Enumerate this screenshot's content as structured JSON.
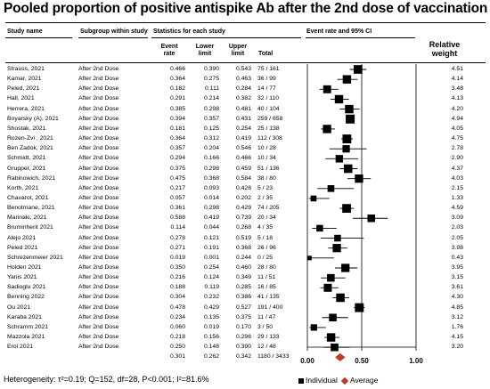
{
  "title": "Pooled proportion of positive antispike Ab after the 2nd dose of vaccination",
  "headers": {
    "study_name": "Study name",
    "subgroup": "Subgroup within study",
    "statistics": "Statistics for each study",
    "event_rate": "Event\nrate",
    "lower": "Lower\nlimit",
    "upper": "Upper\nlimit",
    "total": "Total",
    "ci": "Event rate and 95% CI",
    "weight": "Relative\nweight"
  },
  "chart_data": {
    "type": "forest",
    "title": "Pooled proportion of positive antispike Ab after the 2nd dose of vaccination",
    "xlim": [
      0.0,
      1.0
    ],
    "xticks": [
      "0.00",
      "0.50",
      "1.00"
    ],
    "xtick_values": [
      0.0,
      0.5,
      1.0
    ],
    "studies": [
      {
        "name": "Strauss, 2021",
        "subgroup": "After 2nd Dose",
        "rate": 0.466,
        "lower": 0.39,
        "upper": 0.543,
        "total": "75 / 161",
        "weight": "4.51"
      },
      {
        "name": "Kamar, 2021",
        "subgroup": "After 2nd Dose",
        "rate": 0.364,
        "lower": 0.275,
        "upper": 0.463,
        "total": "36 / 99",
        "weight": "4.14"
      },
      {
        "name": "Peled, 2021",
        "subgroup": "After 2nd Dose",
        "rate": 0.182,
        "lower": 0.111,
        "upper": 0.284,
        "total": "14 / 77",
        "weight": "3.48"
      },
      {
        "name": "Hall, 2021",
        "subgroup": "After 2nd Dose",
        "rate": 0.291,
        "lower": 0.214,
        "upper": 0.382,
        "total": "32 / 110",
        "weight": "4.13"
      },
      {
        "name": "Herrera, 2021",
        "subgroup": "After 2nd Dose",
        "rate": 0.385,
        "lower": 0.298,
        "upper": 0.481,
        "total": "40 / 104",
        "weight": "4.20"
      },
      {
        "name": "Boyarsky (A), 2021",
        "subgroup": "After 2nd Dose",
        "rate": 0.394,
        "lower": 0.357,
        "upper": 0.431,
        "total": "259 / 658",
        "weight": "4.94"
      },
      {
        "name": "Shostak, 2021",
        "subgroup": "After 2nd Dose",
        "rate": 0.181,
        "lower": 0.125,
        "upper": 0.254,
        "total": "25 / 138",
        "weight": "4.05"
      },
      {
        "name": "Rozen-Zvi , 2021",
        "subgroup": "After 2nd Dose",
        "rate": 0.364,
        "lower": 0.312,
        "upper": 0.419,
        "total": "112 / 308",
        "weight": "4.75"
      },
      {
        "name": "Ben Zadok, 2021",
        "subgroup": "After 2nd Dose",
        "rate": 0.357,
        "lower": 0.204,
        "upper": 0.546,
        "total": "10 / 28",
        "weight": "2.78"
      },
      {
        "name": "Schmidt, 2021",
        "subgroup": "After 2nd Dose",
        "rate": 0.294,
        "lower": 0.166,
        "upper": 0.466,
        "total": "10 / 34",
        "weight": "2.90"
      },
      {
        "name": "Grupper, 2021",
        "subgroup": "After 2nd Dose",
        "rate": 0.375,
        "lower": 0.298,
        "upper": 0.459,
        "total": "51 / 136",
        "weight": "4.37"
      },
      {
        "name": "Rabinowich, 2021",
        "subgroup": "After 2nd Dose",
        "rate": 0.475,
        "lower": 0.368,
        "upper": 0.584,
        "total": "38 / 80",
        "weight": "4.03"
      },
      {
        "name": "Korth, 2021",
        "subgroup": "After 2nd Dose",
        "rate": 0.217,
        "lower": 0.093,
        "upper": 0.428,
        "total": "5 / 23",
        "weight": "2.15"
      },
      {
        "name": "Chavarot, 2021",
        "subgroup": "After 2nd Dose",
        "rate": 0.057,
        "lower": 0.014,
        "upper": 0.202,
        "total": "2 / 35",
        "weight": "1.33"
      },
      {
        "name": "Benotmane, 2021",
        "subgroup": "After 2nd Dose",
        "rate": 0.361,
        "lower": 0.298,
        "upper": 0.429,
        "total": "74 / 205",
        "weight": "4.59"
      },
      {
        "name": "Marinaki, 2021",
        "subgroup": "After 2nd Dose",
        "rate": 0.588,
        "lower": 0.419,
        "upper": 0.739,
        "total": "20 / 34",
        "weight": "3.09"
      },
      {
        "name": "Bruminhent 2021",
        "subgroup": "After 2nd Dose",
        "rate": 0.114,
        "lower": 0.044,
        "upper": 0.268,
        "total": "4 / 35",
        "weight": "2.03"
      },
      {
        "name": "Alejo 2021",
        "subgroup": "After 2nd Dose",
        "rate": 0.278,
        "lower": 0.121,
        "upper": 0.519,
        "total": "5 / 18",
        "weight": "2.05"
      },
      {
        "name": "Peled 2021",
        "subgroup": "After 2nd Dose",
        "rate": 0.271,
        "lower": 0.191,
        "upper": 0.368,
        "total": "26 / 96",
        "weight": "3.98"
      },
      {
        "name": "Schrezenmeier 2021",
        "subgroup": "After 2nd Dose",
        "rate": 0.019,
        "lower": 0.001,
        "upper": 0.244,
        "total": "0 / 25",
        "weight": "0.43"
      },
      {
        "name": "Holden 2021",
        "subgroup": "After 2nd Dose",
        "rate": 0.35,
        "lower": 0.254,
        "upper": 0.46,
        "total": "28 / 80",
        "weight": "3.95"
      },
      {
        "name": "Yanis 2021",
        "subgroup": "After 2nd Dose",
        "rate": 0.216,
        "lower": 0.124,
        "upper": 0.349,
        "total": "11 / 51",
        "weight": "3.15"
      },
      {
        "name": "Sadioglu 2021",
        "subgroup": "After 2nd Dose",
        "rate": 0.188,
        "lower": 0.119,
        "upper": 0.285,
        "total": "16 / 85",
        "weight": "3.61"
      },
      {
        "name": "Benning 2022",
        "subgroup": "After 2nd Dose",
        "rate": 0.304,
        "lower": 0.232,
        "upper": 0.386,
        "total": "41 / 135",
        "weight": "4.30"
      },
      {
        "name": "Ou 2021",
        "subgroup": "After 2nd Dose",
        "rate": 0.478,
        "lower": 0.429,
        "upper": 0.527,
        "total": "191 / 400",
        "weight": "4.85"
      },
      {
        "name": "Karaba 2021",
        "subgroup": "After 2nd Dose",
        "rate": 0.234,
        "lower": 0.135,
        "upper": 0.375,
        "total": "11 / 47",
        "weight": "3.12"
      },
      {
        "name": "Schramm 2021",
        "subgroup": "After 2nd Dose",
        "rate": 0.06,
        "lower": 0.019,
        "upper": 0.17,
        "total": "3 / 50",
        "weight": "1.76"
      },
      {
        "name": "Mazzola 2021",
        "subgroup": "After 2nd Dose",
        "rate": 0.218,
        "lower": 0.156,
        "upper": 0.296,
        "total": "29 / 133",
        "weight": "4.15"
      },
      {
        "name": "Erol 2021",
        "subgroup": "After 2nd Dose",
        "rate": 0.25,
        "lower": 0.148,
        "upper": 0.39,
        "total": "12 / 48",
        "weight": "3.20"
      }
    ],
    "pooled": {
      "rate": 0.301,
      "lower": 0.262,
      "upper": 0.342,
      "total": "1180 / 3433"
    },
    "colors": {
      "individual": "#000000",
      "pooled": "#c0392b"
    }
  },
  "footer": "Heterogeneity: τ²=0.19; Q=152, df=28, P<0.001; I²=81.6%",
  "legend": {
    "individual": "Individual",
    "average": "Average"
  }
}
